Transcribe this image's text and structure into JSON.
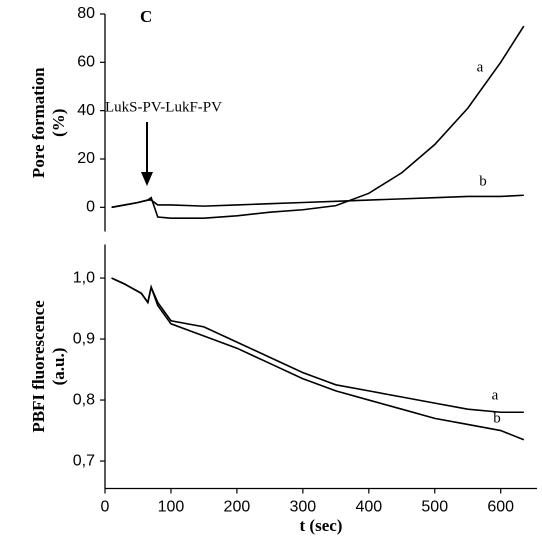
{
  "chart_data": [
    {
      "type": "line",
      "panel_label": "C",
      "annotation": "LukS-PV-LukF-PV",
      "ylabel": [
        "Pore formation",
        "(%)"
      ],
      "x": [
        10,
        30,
        50,
        65,
        70,
        80,
        100,
        150,
        200,
        250,
        300,
        350,
        400,
        450,
        500,
        550,
        600,
        635
      ],
      "series": [
        {
          "name": "a",
          "color": "#000000",
          "values": [
            0,
            1,
            2,
            3,
            4,
            -4,
            -4.5,
            -4.5,
            -3.5,
            -2,
            -1,
            0.7,
            5.8,
            14.3,
            26,
            41,
            60,
            75
          ]
        },
        {
          "name": "b",
          "color": "#000000",
          "values": [
            0,
            1,
            2,
            3,
            3,
            1,
            1,
            0.5,
            1,
            1.5,
            2,
            2.5,
            3,
            3.5,
            4,
            4.5,
            4.5,
            5
          ]
        }
      ],
      "xlim": [
        0,
        655
      ],
      "ylim": [
        -10,
        80
      ],
      "yticks": [
        0,
        20,
        40,
        60,
        80
      ]
    },
    {
      "type": "line",
      "ylabel": [
        "PBFI fluorescence",
        "(a.u.)"
      ],
      "xlabel": "t (sec)",
      "x": [
        10,
        30,
        55,
        65,
        70,
        80,
        100,
        150,
        200,
        250,
        300,
        350,
        400,
        450,
        500,
        550,
        600,
        635
      ],
      "series": [
        {
          "name": "a",
          "color": "#000000",
          "values": [
            1.0,
            0.99,
            0.975,
            0.96,
            0.985,
            0.96,
            0.93,
            0.92,
            0.895,
            0.87,
            0.845,
            0.825,
            0.815,
            0.805,
            0.795,
            0.785,
            0.78,
            0.78
          ]
        },
        {
          "name": "b",
          "color": "#000000",
          "values": [
            1.0,
            0.99,
            0.975,
            0.96,
            0.985,
            0.955,
            0.925,
            0.905,
            0.885,
            0.86,
            0.835,
            0.815,
            0.8,
            0.785,
            0.77,
            0.76,
            0.75,
            0.735
          ]
        }
      ],
      "xlim": [
        0,
        655
      ],
      "ylim": [
        0.655,
        1.055
      ],
      "xticks": [
        0,
        100,
        200,
        300,
        400,
        500,
        600
      ],
      "yticks": [
        {
          "value": 0.7,
          "label": "0,7"
        },
        {
          "value": 0.8,
          "label": "0,8"
        },
        {
          "value": 0.9,
          "label": "0,9"
        },
        {
          "value": 1.0,
          "label": "1,0"
        }
      ]
    }
  ]
}
